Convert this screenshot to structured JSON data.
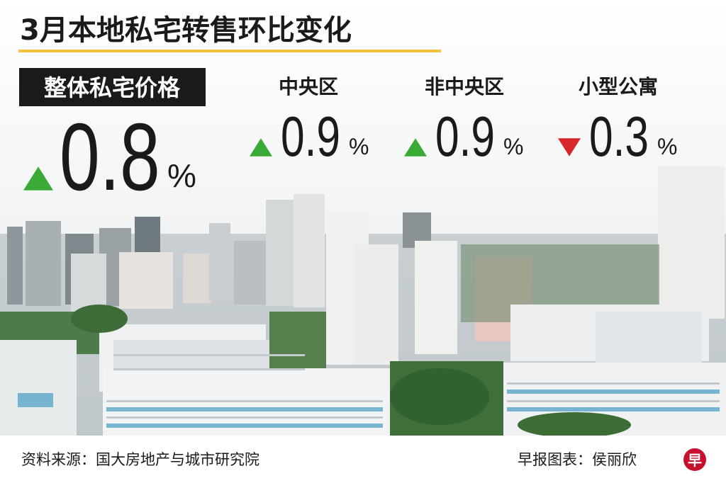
{
  "header": {
    "title": "3月本地私宅转售环比变化"
  },
  "metrics": [
    {
      "label": "整体私宅价格",
      "value": 0.8,
      "unit": "%",
      "direction": "up",
      "color": "#3aa935"
    },
    {
      "label": "中央区",
      "value": 0.9,
      "unit": "%",
      "direction": "up",
      "color": "#3aa935"
    },
    {
      "label": "非中央区",
      "value": 0.9,
      "unit": "%",
      "direction": "up",
      "color": "#3aa935"
    },
    {
      "label": "小型公寓",
      "value": 0.3,
      "unit": "%",
      "direction": "down",
      "color": "#d9262a"
    }
  ],
  "footer": {
    "source": "资料来源：国大房地产与城市研究院",
    "credit": "早报图表：侯丽欣",
    "logo": "早"
  }
}
